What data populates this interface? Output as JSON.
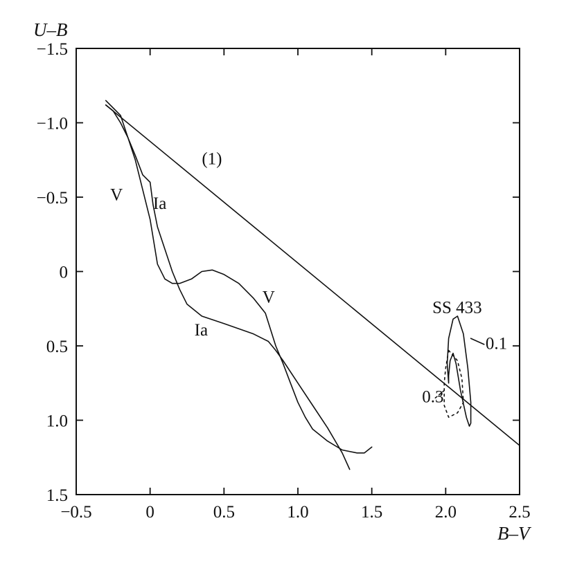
{
  "chart_data": {
    "type": "line",
    "title": "",
    "xlabel": "B–V",
    "ylabel": "U–B",
    "xlim": [
      -0.5,
      2.5
    ],
    "ylim": [
      1.5,
      -1.5
    ],
    "y_inverted": true,
    "x_ticks": [
      "−0.5",
      "0",
      "0.5",
      "1.0",
      "1.5",
      "2.0",
      "2.5"
    ],
    "x_tick_values": [
      -0.5,
      0,
      0.5,
      1.0,
      1.5,
      2.0,
      2.5
    ],
    "y_ticks": [
      "−1.5",
      "−1.0",
      "−0.5",
      "0",
      "0.5",
      "1.0",
      "1.5"
    ],
    "y_tick_values": [
      -1.5,
      -1.0,
      -0.5,
      0,
      0.5,
      1.0,
      1.5
    ],
    "grid": false,
    "series": [
      {
        "name": "V",
        "style": "solid",
        "points": [
          [
            -0.3,
            -1.12
          ],
          [
            -0.25,
            -1.08
          ],
          [
            -0.2,
            -1.0
          ],
          [
            -0.15,
            -0.9
          ],
          [
            -0.1,
            -0.75
          ],
          [
            -0.05,
            -0.55
          ],
          [
            0.0,
            -0.35
          ],
          [
            0.05,
            -0.05
          ],
          [
            0.1,
            0.05
          ],
          [
            0.15,
            0.08
          ],
          [
            0.2,
            0.08
          ],
          [
            0.28,
            0.05
          ],
          [
            0.35,
            0.0
          ],
          [
            0.42,
            -0.01
          ],
          [
            0.5,
            0.02
          ],
          [
            0.6,
            0.08
          ],
          [
            0.7,
            0.18
          ],
          [
            0.78,
            0.28
          ],
          [
            0.85,
            0.5
          ],
          [
            0.9,
            0.62
          ],
          [
            0.95,
            0.75
          ],
          [
            1.0,
            0.88
          ],
          [
            1.05,
            0.98
          ],
          [
            1.1,
            1.06
          ],
          [
            1.2,
            1.14
          ],
          [
            1.3,
            1.2
          ],
          [
            1.4,
            1.22
          ],
          [
            1.45,
            1.22
          ],
          [
            1.5,
            1.18
          ]
        ]
      },
      {
        "name": "Ia",
        "style": "solid",
        "points": [
          [
            -0.3,
            -1.15
          ],
          [
            -0.25,
            -1.1
          ],
          [
            -0.2,
            -1.05
          ],
          [
            -0.15,
            -0.9
          ],
          [
            -0.1,
            -0.78
          ],
          [
            -0.05,
            -0.65
          ],
          [
            0.0,
            -0.6
          ],
          [
            0.02,
            -0.45
          ],
          [
            0.05,
            -0.3
          ],
          [
            0.1,
            -0.15
          ],
          [
            0.15,
            0.0
          ],
          [
            0.2,
            0.12
          ],
          [
            0.25,
            0.22
          ],
          [
            0.35,
            0.3
          ],
          [
            0.5,
            0.35
          ],
          [
            0.7,
            0.42
          ],
          [
            0.8,
            0.47
          ],
          [
            0.85,
            0.53
          ],
          [
            0.9,
            0.6
          ],
          [
            1.0,
            0.75
          ],
          [
            1.1,
            0.9
          ],
          [
            1.2,
            1.05
          ],
          [
            1.3,
            1.22
          ],
          [
            1.35,
            1.33
          ]
        ]
      },
      {
        "name": "(1)",
        "style": "solid",
        "points": [
          [
            -0.3,
            -1.12
          ],
          [
            2.5,
            1.17
          ]
        ]
      },
      {
        "name": "0.1",
        "style": "solid",
        "points": [
          [
            2.02,
            0.75
          ],
          [
            2.01,
            0.62
          ],
          [
            2.02,
            0.45
          ],
          [
            2.05,
            0.32
          ],
          [
            2.08,
            0.3
          ],
          [
            2.12,
            0.42
          ],
          [
            2.15,
            0.65
          ],
          [
            2.17,
            0.88
          ],
          [
            2.17,
            1.02
          ],
          [
            2.16,
            1.04
          ],
          [
            2.14,
            0.98
          ],
          [
            2.1,
            0.8
          ],
          [
            2.07,
            0.62
          ],
          [
            2.05,
            0.55
          ],
          [
            2.03,
            0.6
          ],
          [
            2.02,
            0.7
          ],
          [
            2.02,
            0.75
          ]
        ]
      },
      {
        "name": "0.3",
        "style": "dotted",
        "points": [
          [
            2.02,
            0.53
          ],
          [
            2.08,
            0.6
          ],
          [
            2.11,
            0.72
          ],
          [
            2.12,
            0.88
          ],
          [
            2.08,
            0.95
          ],
          [
            2.02,
            0.98
          ],
          [
            1.99,
            0.9
          ],
          [
            1.99,
            0.75
          ],
          [
            2.0,
            0.65
          ],
          [
            2.02,
            0.53
          ]
        ]
      }
    ],
    "annotations": [
      {
        "text": "(1)",
        "x": 0.35,
        "y": -0.72
      },
      {
        "text": "V",
        "x": -0.27,
        "y": -0.48
      },
      {
        "text": "Ia",
        "x": 0.02,
        "y": -0.42
      },
      {
        "text": "V",
        "x": 0.76,
        "y": 0.21
      },
      {
        "text": "Ia",
        "x": 0.3,
        "y": 0.43
      },
      {
        "text": "SS 433",
        "x": 1.91,
        "y": 0.28
      },
      {
        "text": "0.1",
        "x": 2.27,
        "y": 0.52
      },
      {
        "text": "0.3",
        "x": 1.84,
        "y": 0.88
      }
    ]
  }
}
